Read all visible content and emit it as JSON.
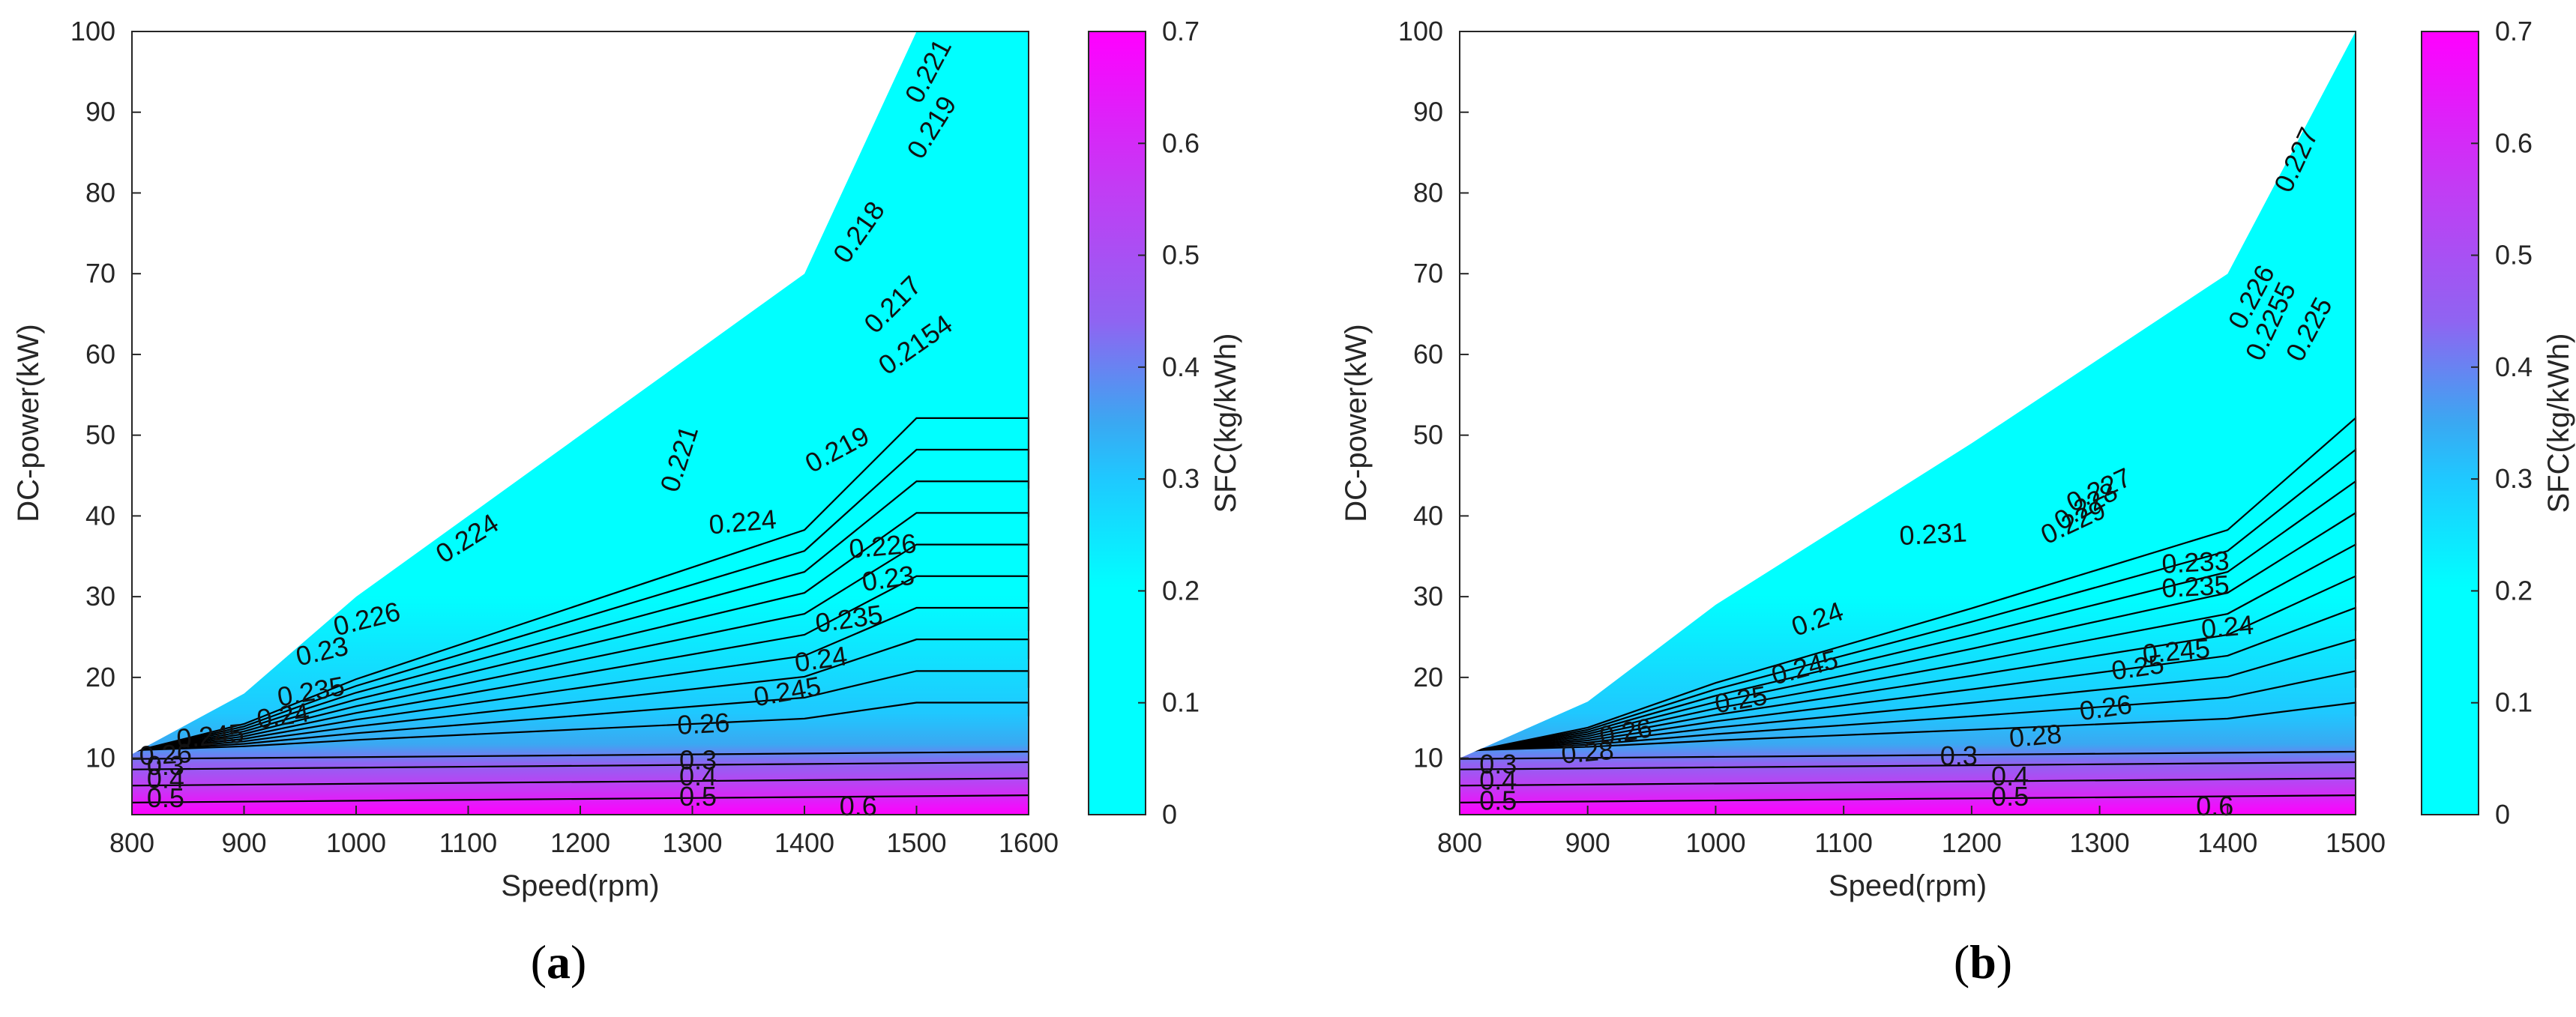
{
  "colors": {
    "cyan": "#00ffff",
    "mid": "#1fc8ff",
    "blue": "#3aa8f2",
    "purple": "#8f64f2",
    "magenta": "#ff00ff",
    "contour": "#000000",
    "axis": "#262626"
  },
  "chart_data": [
    {
      "type": "contour",
      "caption_open": "(",
      "caption_letter": "a",
      "caption_close": ")",
      "xlabel": "Speed(rpm)",
      "ylabel": "DC-power(kW)",
      "xlim": [
        800,
        1600
      ],
      "ylim": [
        3,
        100
      ],
      "xticks": [
        800,
        900,
        1000,
        1100,
        1200,
        1300,
        1400,
        1500,
        1600
      ],
      "yticks": [
        10,
        20,
        30,
        40,
        50,
        60,
        70,
        80,
        90,
        100
      ],
      "max_power_boundary": [
        [
          800,
          10.5
        ],
        [
          900,
          18
        ],
        [
          1000,
          30
        ],
        [
          1200,
          50
        ],
        [
          1400,
          70
        ],
        [
          1500,
          100
        ],
        [
          1600,
          100
        ]
      ],
      "colorbar": {
        "label": "SFC(kg/kWh)",
        "range": [
          0,
          0.7
        ],
        "ticks": [
          0,
          0.1,
          0.2,
          0.3,
          0.4,
          0.5,
          0.6,
          0.7
        ]
      },
      "contour_labels": [
        {
          "text": "0.221",
          "x": 1512,
          "y": 95,
          "rot": -62
        },
        {
          "text": "0.219",
          "x": 1515,
          "y": 88,
          "rot": -58
        },
        {
          "text": "0.218",
          "x": 1450,
          "y": 75,
          "rot": -55
        },
        {
          "text": "0.217",
          "x": 1480,
          "y": 66,
          "rot": -45
        },
        {
          "text": "0.2154",
          "x": 1500,
          "y": 61,
          "rot": -35
        },
        {
          "text": "0.219",
          "x": 1430,
          "y": 48,
          "rot": -28
        },
        {
          "text": "0.221",
          "x": 1290,
          "y": 47,
          "rot": -72
        },
        {
          "text": "0.224",
          "x": 1100,
          "y": 37,
          "rot": -32
        },
        {
          "text": "0.224",
          "x": 1345,
          "y": 39,
          "rot": -5
        },
        {
          "text": "0.226",
          "x": 1470,
          "y": 36,
          "rot": -5
        },
        {
          "text": "0.226",
          "x": 1010,
          "y": 27,
          "rot": -14
        },
        {
          "text": "0.23",
          "x": 1475,
          "y": 32,
          "rot": -8
        },
        {
          "text": "0.23",
          "x": 970,
          "y": 23,
          "rot": -13
        },
        {
          "text": "0.235",
          "x": 1440,
          "y": 27,
          "rot": -8
        },
        {
          "text": "0.24",
          "x": 1415,
          "y": 22,
          "rot": -8
        },
        {
          "text": "0.235",
          "x": 960,
          "y": 18,
          "rot": -10
        },
        {
          "text": "0.245",
          "x": 1385,
          "y": 18,
          "rot": -10
        },
        {
          "text": "0.24",
          "x": 935,
          "y": 15,
          "rot": -8
        },
        {
          "text": "0.245",
          "x": 870,
          "y": 12.5,
          "rot": -5
        },
        {
          "text": "0.26",
          "x": 1310,
          "y": 14,
          "rot": -3
        },
        {
          "text": "0.26",
          "x": 830,
          "y": 10.2,
          "rot": -3
        },
        {
          "text": "0.3",
          "x": 830,
          "y": 8.8,
          "rot": 0
        },
        {
          "text": "0.3",
          "x": 1305,
          "y": 9.5,
          "rot": 0
        },
        {
          "text": "0.4",
          "x": 830,
          "y": 7.2,
          "rot": 0
        },
        {
          "text": "0.4",
          "x": 1305,
          "y": 7.5,
          "rot": 0
        },
        {
          "text": "0.5",
          "x": 830,
          "y": 4.8,
          "rot": 0
        },
        {
          "text": "0.5",
          "x": 1305,
          "y": 5,
          "rot": 0
        },
        {
          "text": "0.6",
          "x": 1448,
          "y": 3.8,
          "rot": 0
        }
      ]
    },
    {
      "type": "contour",
      "caption_open": "(",
      "caption_letter": "b",
      "caption_close": ")",
      "xlabel": "Speed(rpm)",
      "ylabel": "DC-power(kW)",
      "xlim": [
        800,
        1500
      ],
      "ylim": [
        3,
        100
      ],
      "xticks": [
        800,
        900,
        1000,
        1100,
        1200,
        1300,
        1400,
        1500
      ],
      "yticks": [
        10,
        20,
        30,
        40,
        50,
        60,
        70,
        80,
        90,
        100
      ],
      "max_power_boundary": [
        [
          800,
          10
        ],
        [
          900,
          17
        ],
        [
          1000,
          29
        ],
        [
          1200,
          49
        ],
        [
          1400,
          70
        ],
        [
          1500,
          100
        ]
      ],
      "colorbar": {
        "label": "SFC(kg/kWh)",
        "range": [
          0,
          0.7
        ],
        "ticks": [
          0,
          0.1,
          0.2,
          0.3,
          0.4,
          0.5,
          0.6,
          0.7
        ]
      },
      "contour_labels": [
        {
          "text": "0.227",
          "x": 1455,
          "y": 84,
          "rot": -65
        },
        {
          "text": "0.226",
          "x": 1420,
          "y": 67,
          "rot": -62
        },
        {
          "text": "0.2255",
          "x": 1435,
          "y": 64,
          "rot": -65
        },
        {
          "text": "0.225",
          "x": 1465,
          "y": 63,
          "rot": -62
        },
        {
          "text": "0.227",
          "x": 1300,
          "y": 43,
          "rot": -25
        },
        {
          "text": "0.228",
          "x": 1290,
          "y": 41,
          "rot": -30
        },
        {
          "text": "0.229",
          "x": 1280,
          "y": 39,
          "rot": -25
        },
        {
          "text": "0.231",
          "x": 1170,
          "y": 37.5,
          "rot": -3
        },
        {
          "text": "0.233",
          "x": 1375,
          "y": 34,
          "rot": -3
        },
        {
          "text": "0.235",
          "x": 1375,
          "y": 31,
          "rot": -3
        },
        {
          "text": "0.24",
          "x": 1080,
          "y": 27,
          "rot": -20
        },
        {
          "text": "0.24",
          "x": 1400,
          "y": 26,
          "rot": -5
        },
        {
          "text": "0.245",
          "x": 1070,
          "y": 21,
          "rot": -15
        },
        {
          "text": "0.245",
          "x": 1360,
          "y": 23,
          "rot": -5
        },
        {
          "text": "0.25",
          "x": 1020,
          "y": 17,
          "rot": -10
        },
        {
          "text": "0.25",
          "x": 1330,
          "y": 21,
          "rot": -8
        },
        {
          "text": "0.26",
          "x": 930,
          "y": 13,
          "rot": -10
        },
        {
          "text": "0.26",
          "x": 1305,
          "y": 16,
          "rot": -8
        },
        {
          "text": "0.28",
          "x": 900,
          "y": 10.5,
          "rot": -5
        },
        {
          "text": "0.28",
          "x": 1250,
          "y": 12.5,
          "rot": -5
        },
        {
          "text": "0.3",
          "x": 830,
          "y": 9,
          "rot": 0
        },
        {
          "text": "0.3",
          "x": 1190,
          "y": 10,
          "rot": 0
        },
        {
          "text": "0.4",
          "x": 830,
          "y": 7,
          "rot": 0
        },
        {
          "text": "0.4",
          "x": 1230,
          "y": 7.5,
          "rot": 0
        },
        {
          "text": "0.5",
          "x": 830,
          "y": 4.5,
          "rot": 0
        },
        {
          "text": "0.5",
          "x": 1230,
          "y": 5,
          "rot": 0
        },
        {
          "text": "0.6",
          "x": 1390,
          "y": 3.8,
          "rot": 0
        }
      ]
    }
  ]
}
